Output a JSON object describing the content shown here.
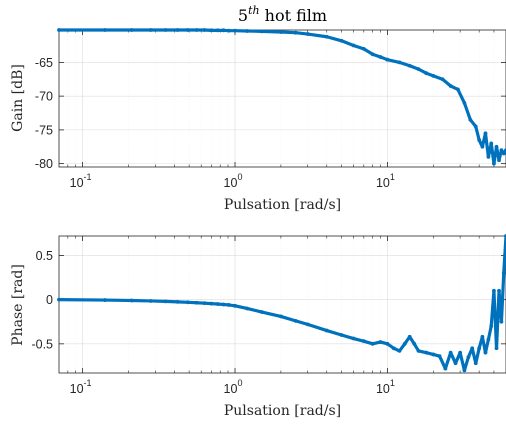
{
  "chart_data": [
    {
      "type": "line",
      "title": "5",
      "title_sup": "th",
      "title_rest": " hot film",
      "xlabel": "Pulsation [rad/s]",
      "ylabel": "Gain [dB]",
      "xscale": "log",
      "xlim": [
        0.07,
        60
      ],
      "ylim": [
        -80.5,
        -60.2
      ],
      "xticks": [
        {
          "mant": "10",
          "exp": "-1",
          "value": 0.1
        },
        {
          "mant": "10",
          "exp": "0",
          "value": 1
        },
        {
          "mant": "10",
          "exp": "1",
          "value": 10
        }
      ],
      "yticks": [
        -65,
        -70,
        -75,
        -80
      ],
      "grid": true,
      "color": "#0072BD",
      "series": [
        {
          "x": [
            0.07,
            0.14,
            0.21,
            0.28,
            0.35,
            0.42,
            0.49,
            0.56,
            0.63,
            0.7,
            0.77,
            0.84,
            0.91,
            1.0,
            1.2,
            1.5,
            2,
            2.5,
            3,
            4,
            5,
            6,
            7,
            8,
            9,
            10,
            12,
            14,
            16,
            18,
            20,
            23,
            26,
            29,
            32,
            35,
            38,
            40,
            42,
            44,
            46,
            48,
            50,
            52,
            54,
            56,
            58,
            60
          ],
          "y": [
            -60.2,
            -60.2,
            -60.2,
            -60.2,
            -60.2,
            -60.2,
            -60.2,
            -60.2,
            -60.2,
            -60.25,
            -60.25,
            -60.25,
            -60.3,
            -60.3,
            -60.35,
            -60.4,
            -60.5,
            -60.6,
            -60.8,
            -61.2,
            -61.8,
            -62.5,
            -63.0,
            -63.8,
            -64.2,
            -64.6,
            -65.0,
            -65.5,
            -66.0,
            -66.6,
            -67.0,
            -67.5,
            -68.5,
            -69.0,
            -71.0,
            -73.5,
            -74.5,
            -76.5,
            -77.5,
            -75.5,
            -79.0,
            -77.0,
            -80.0,
            -77.5,
            -79.5,
            -78.0,
            -78.5,
            -78.0
          ]
        }
      ]
    },
    {
      "type": "line",
      "xlabel": "Pulsation [rad/s]",
      "ylabel": "Phase [rad]",
      "xscale": "log",
      "xlim": [
        0.07,
        60
      ],
      "ylim": [
        -0.83,
        0.72
      ],
      "xticks": [
        {
          "mant": "10",
          "exp": "-1",
          "value": 0.1
        },
        {
          "mant": "10",
          "exp": "0",
          "value": 1
        },
        {
          "mant": "10",
          "exp": "1",
          "value": 10
        }
      ],
      "yticks": [
        0.5,
        0,
        -0.5
      ],
      "ytick_labels": [
        "0.5",
        "0",
        "-0.5"
      ],
      "grid": true,
      "color": "#0072BD",
      "series": [
        {
          "x": [
            0.07,
            0.14,
            0.21,
            0.28,
            0.35,
            0.42,
            0.49,
            0.56,
            0.63,
            0.7,
            0.77,
            0.84,
            0.91,
            1.0,
            1.2,
            1.5,
            2,
            2.5,
            3,
            4,
            5,
            6,
            7,
            8,
            9,
            10,
            11,
            12,
            13,
            14,
            15,
            16,
            18,
            20,
            22,
            24,
            26,
            28,
            30,
            32,
            34,
            36,
            38,
            40,
            42,
            44,
            46,
            48,
            50,
            52,
            54,
            56,
            58,
            60
          ],
          "y": [
            0,
            -0.005,
            -0.01,
            -0.015,
            -0.02,
            -0.025,
            -0.03,
            -0.035,
            -0.04,
            -0.045,
            -0.05,
            -0.055,
            -0.06,
            -0.07,
            -0.1,
            -0.14,
            -0.19,
            -0.24,
            -0.28,
            -0.35,
            -0.4,
            -0.44,
            -0.47,
            -0.5,
            -0.48,
            -0.5,
            -0.55,
            -0.58,
            -0.5,
            -0.42,
            -0.5,
            -0.58,
            -0.6,
            -0.62,
            -0.64,
            -0.78,
            -0.6,
            -0.72,
            -0.6,
            -0.8,
            -0.65,
            -0.55,
            -0.72,
            -0.55,
            -0.42,
            -0.6,
            -0.45,
            -0.3,
            0.1,
            -0.55,
            0.1,
            -0.25,
            0.3,
            0.72
          ]
        }
      ]
    }
  ]
}
